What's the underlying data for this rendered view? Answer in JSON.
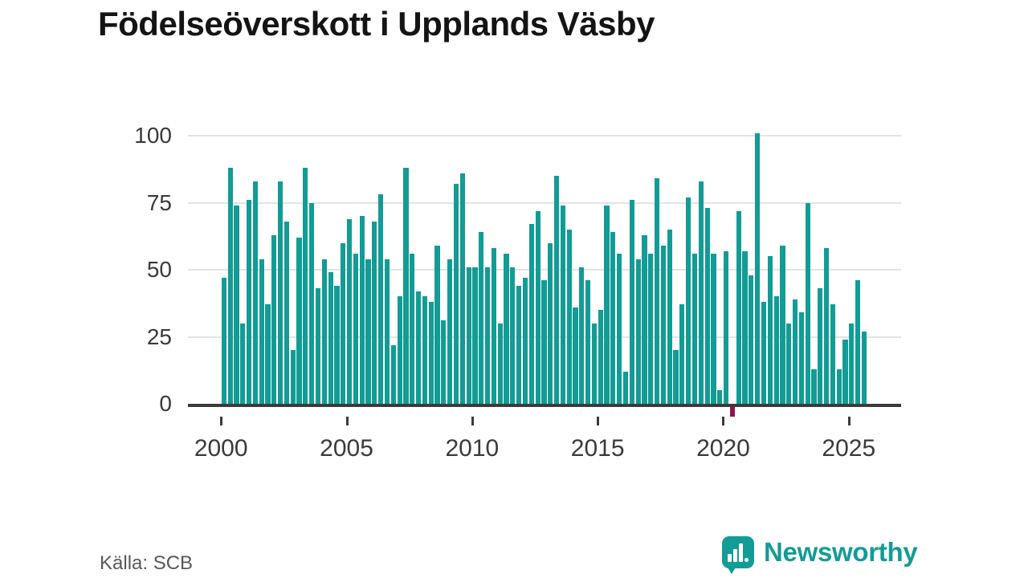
{
  "title": "Födelseöverskott i Upplands Väsby",
  "source": {
    "label": "Källa: SCB"
  },
  "branding": {
    "name": "Newsworthy",
    "logo_icon": "bar-chart-speech-bubble-icon"
  },
  "colors": {
    "bar": "#129c95",
    "bar_negative": "#8e1450",
    "grid": "#e3e3e3",
    "axis": "#3b3b3b",
    "labels": "#3a3a3a",
    "title": "#141414",
    "source_text": "#595959",
    "brand": "#129c95"
  },
  "chart_data": {
    "type": "bar",
    "title": "Födelseöverskott i Upplands Väsby",
    "period": "quarterly",
    "start_year": 2000,
    "start_quarter": 1,
    "end_period": "2025 Q3",
    "xlabel": "",
    "ylabel": "",
    "y_ticks": [
      0,
      25,
      50,
      75,
      100
    ],
    "ylim": [
      -8,
      105
    ],
    "x_year_ticks": [
      2000,
      2005,
      2010,
      2015,
      2020,
      2025
    ],
    "grid": "horizontal",
    "negative_highlight_period": "2020 Q2",
    "values": [
      47,
      88,
      74,
      30,
      76,
      83,
      54,
      37,
      63,
      83,
      68,
      20,
      62,
      88,
      75,
      43,
      54,
      49,
      44,
      60,
      69,
      56,
      70,
      54,
      68,
      78,
      54,
      22,
      40,
      88,
      56,
      42,
      40,
      38,
      59,
      31,
      54,
      82,
      86,
      51,
      51,
      64,
      51,
      58,
      30,
      56,
      51,
      44,
      47,
      67,
      72,
      46,
      60,
      85,
      74,
      65,
      36,
      51,
      46,
      30,
      35,
      74,
      64,
      56,
      12,
      76,
      54,
      63,
      56,
      84,
      59,
      65,
      20,
      37,
      77,
      56,
      83,
      73,
      56,
      5,
      57,
      -4,
      72,
      57,
      48,
      101,
      38,
      55,
      40,
      59,
      30,
      39,
      34,
      75,
      13,
      43,
      58,
      37,
      13,
      24,
      30,
      46,
      27
    ]
  }
}
